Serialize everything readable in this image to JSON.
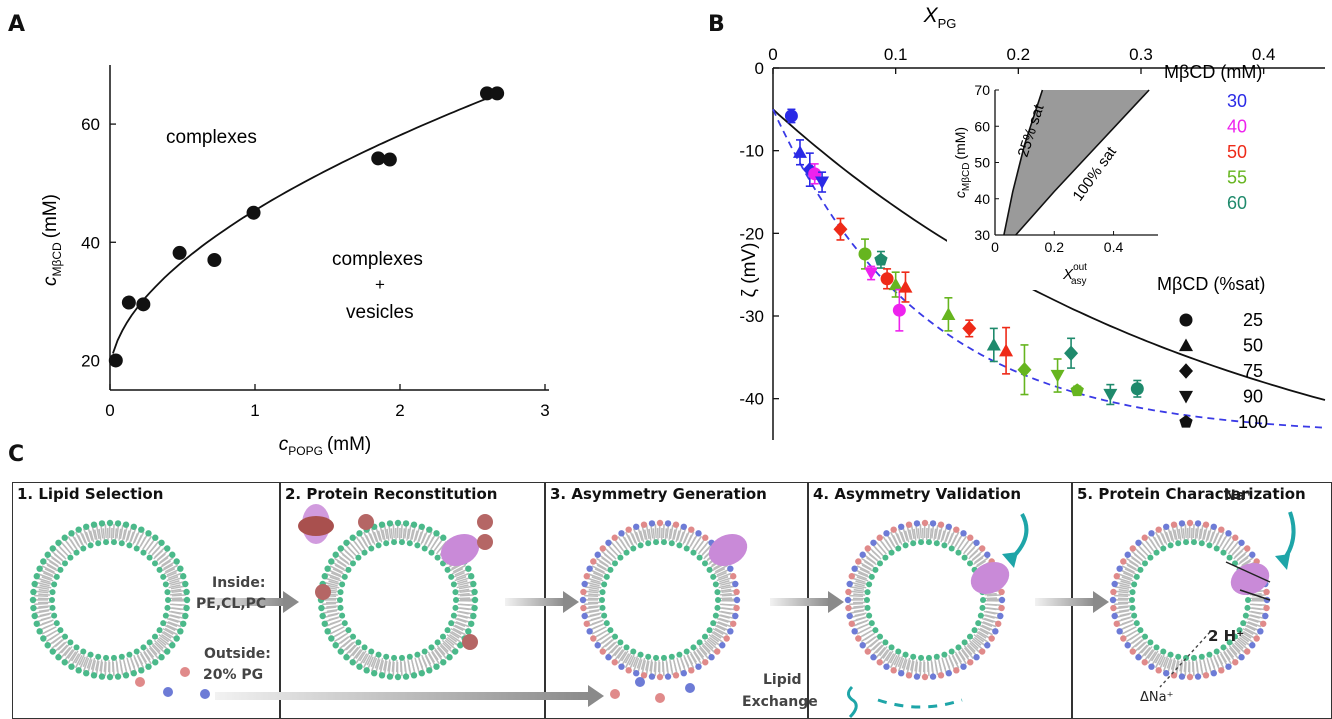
{
  "panels": {
    "a": "A",
    "b": "B",
    "c": "C"
  },
  "chart_data": [
    {
      "type": "scatter",
      "panel": "A",
      "xlabel_main": "c",
      "xlabel_sub": "POPG",
      "xlabel_unit": "(mM)",
      "ylabel_main": "c",
      "ylabel_sub": "MβCD",
      "ylabel_unit": "(mM)",
      "xlim": [
        0,
        3
      ],
      "ylim": [
        15,
        70
      ],
      "xticks": [
        0,
        1,
        2,
        3
      ],
      "yticks": [
        20,
        40,
        60
      ],
      "points": [
        {
          "x": 0.04,
          "y": 20
        },
        {
          "x": 0.13,
          "y": 29.8
        },
        {
          "x": 0.23,
          "y": 29.5
        },
        {
          "x": 0.48,
          "y": 38.2
        },
        {
          "x": 0.72,
          "y": 37
        },
        {
          "x": 0.99,
          "y": 45
        },
        {
          "x": 1.85,
          "y": 54.2
        },
        {
          "x": 1.93,
          "y": 54
        },
        {
          "x": 2.6,
          "y": 65.2
        },
        {
          "x": 2.67,
          "y": 65.2
        }
      ],
      "fit_line": {
        "x_range": [
          0.02,
          2.6
        ]
      },
      "annotations": {
        "upper": "complexes",
        "lower1": "complexes",
        "lower2": "+",
        "lower3": "vesicles"
      }
    },
    {
      "type": "scatter",
      "panel": "B",
      "top_xlabel": "X",
      "top_xlabel_sub": "PG",
      "ylabel": "ζ (mV)",
      "xlim": [
        0,
        0.45
      ],
      "ylim": [
        -45,
        0
      ],
      "xticks": [
        0,
        0.1,
        0.2,
        0.3,
        0.4
      ],
      "xtick_labels": [
        "0",
        "0.1",
        "0.2",
        "0.3",
        "0.4"
      ],
      "yticks": [
        0,
        -10,
        -20,
        -30,
        -40
      ],
      "legend_conc_title": "MβCD (mM)",
      "legend_conc": [
        {
          "label": "30",
          "color": "#2a2ae6"
        },
        {
          "label": "40",
          "color": "#ee22ee"
        },
        {
          "label": "50",
          "color": "#ee2a18"
        },
        {
          "label": "55",
          "color": "#66b51f"
        },
        {
          "label": "60",
          "color": "#1f8a6c"
        }
      ],
      "legend_sat_title": "MβCD (%sat)",
      "legend_sat": [
        {
          "label": "25",
          "marker": "circle"
        },
        {
          "label": "50",
          "marker": "triangle-up"
        },
        {
          "label": "75",
          "marker": "diamond"
        },
        {
          "label": "90",
          "marker": "triangle-down"
        },
        {
          "label": "100",
          "marker": "pentagon"
        }
      ],
      "points": [
        {
          "x": 0.015,
          "y": -5.8,
          "err": 0.8,
          "color": "#2a2ae6",
          "marker": "circle"
        },
        {
          "x": 0.022,
          "y": -10.2,
          "err": 1.5,
          "color": "#2a2ae6",
          "marker": "triangle-up"
        },
        {
          "x": 0.03,
          "y": -12.3,
          "err": 2.0,
          "color": "#2a2ae6",
          "marker": "diamond"
        },
        {
          "x": 0.034,
          "y": -12.8,
          "err": 1.2,
          "color": "#ee22ee",
          "marker": "circle"
        },
        {
          "x": 0.04,
          "y": -13.8,
          "err": 1.2,
          "color": "#2a2ae6",
          "marker": "triangle-down"
        },
        {
          "x": 0.055,
          "y": -19.5,
          "err": 1.3,
          "color": "#ee2a18",
          "marker": "diamond"
        },
        {
          "x": 0.075,
          "y": -22.5,
          "err": 1.8,
          "color": "#66b51f",
          "marker": "circle"
        },
        {
          "x": 0.08,
          "y": -24.8,
          "err": 0.8,
          "color": "#ee22ee",
          "marker": "triangle-down"
        },
        {
          "x": 0.088,
          "y": -23.2,
          "err": 1.0,
          "color": "#1f8a6c",
          "marker": "pentagon"
        },
        {
          "x": 0.093,
          "y": -25.5,
          "err": 1.2,
          "color": "#ee2a18",
          "marker": "circle"
        },
        {
          "x": 0.1,
          "y": -26.2,
          "err": 1.5,
          "color": "#66b51f",
          "marker": "triangle-up"
        },
        {
          "x": 0.103,
          "y": -29.3,
          "err": 2.5,
          "color": "#ee22ee",
          "marker": "circle"
        },
        {
          "x": 0.108,
          "y": -26.5,
          "err": 1.8,
          "color": "#ee2a18",
          "marker": "triangle-up"
        },
        {
          "x": 0.143,
          "y": -29.8,
          "err": 2.0,
          "color": "#66b51f",
          "marker": "triangle-up"
        },
        {
          "x": 0.16,
          "y": -31.5,
          "err": 1.0,
          "color": "#ee2a18",
          "marker": "diamond"
        },
        {
          "x": 0.18,
          "y": -33.5,
          "err": 2.0,
          "color": "#1f8a6c",
          "marker": "triangle-up"
        },
        {
          "x": 0.19,
          "y": -34.2,
          "err": 2.8,
          "color": "#ee2a18",
          "marker": "triangle-up"
        },
        {
          "x": 0.205,
          "y": -36.5,
          "err": 3.0,
          "color": "#66b51f",
          "marker": "diamond"
        },
        {
          "x": 0.232,
          "y": -37.2,
          "err": 2.0,
          "color": "#66b51f",
          "marker": "triangle-down"
        },
        {
          "x": 0.243,
          "y": -34.5,
          "err": 1.8,
          "color": "#1f8a6c",
          "marker": "diamond"
        },
        {
          "x": 0.248,
          "y": -39.0,
          "err": 0.5,
          "color": "#66b51f",
          "marker": "pentagon"
        },
        {
          "x": 0.275,
          "y": -39.5,
          "err": 1.2,
          "color": "#1f8a6c",
          "marker": "triangle-down"
        },
        {
          "x": 0.297,
          "y": -38.8,
          "err": 1.0,
          "color": "#1f8a6c",
          "marker": "circle"
        }
      ],
      "solid_curve": {
        "x0": 0.0,
        "y0": -5.0,
        "xend": 0.45,
        "yend": -38.5
      },
      "dashed_curve": {
        "x0": 0.0,
        "y0": -5.0,
        "xend": 0.45,
        "yend": -42.5
      },
      "inset": {
        "ylabel": "c",
        "ylabel_sub": "MβCD",
        "ylabel_unit": "(mM)",
        "xlabel": "X",
        "xlabel_sup": "out",
        "xlabel_sub": "asy",
        "xlim": [
          0,
          0.55
        ],
        "ylim": [
          30,
          70
        ],
        "xticks": [
          0,
          0.2,
          0.4
        ],
        "xtick_labels": [
          "0",
          "0.2",
          "0.4"
        ],
        "yticks": [
          30,
          40,
          50,
          60,
          70
        ],
        "band_label_left": "25% sat",
        "band_label_right": "100% sat",
        "left_line": [
          [
            0.03,
            30
          ],
          [
            0.06,
            42
          ],
          [
            0.1,
            55
          ],
          [
            0.16,
            70
          ]
        ],
        "right_line": [
          [
            0.07,
            30
          ],
          [
            0.2,
            42
          ],
          [
            0.36,
            56
          ],
          [
            0.52,
            70
          ]
        ]
      }
    }
  ],
  "steps": [
    {
      "title": "1. Lipid Selection"
    },
    {
      "title": "2. Protein Reconstitution"
    },
    {
      "title": "3. Asymmetry Generation"
    },
    {
      "title": "4. Asymmetry Validation"
    },
    {
      "title": "5. Protein Characterization"
    }
  ],
  "step_text": {
    "inside_1": "Inside:",
    "inside_2": "PE,CL,PC",
    "outside_1": "Outside:",
    "outside_2": "20% PG",
    "lipid_exchange_1": "Lipid",
    "lipid_exchange_2": "Exchange",
    "na": "Na⁺",
    "h": "2 H⁺",
    "dna": "ΔNa⁺"
  },
  "colors": {
    "green_lipid": "#4bb98a",
    "blue_lipid": "#6d7bd6",
    "pink_lipid": "#e08a8a",
    "protein": "#c98ad8",
    "teal_arrow": "#1ea5a8"
  }
}
